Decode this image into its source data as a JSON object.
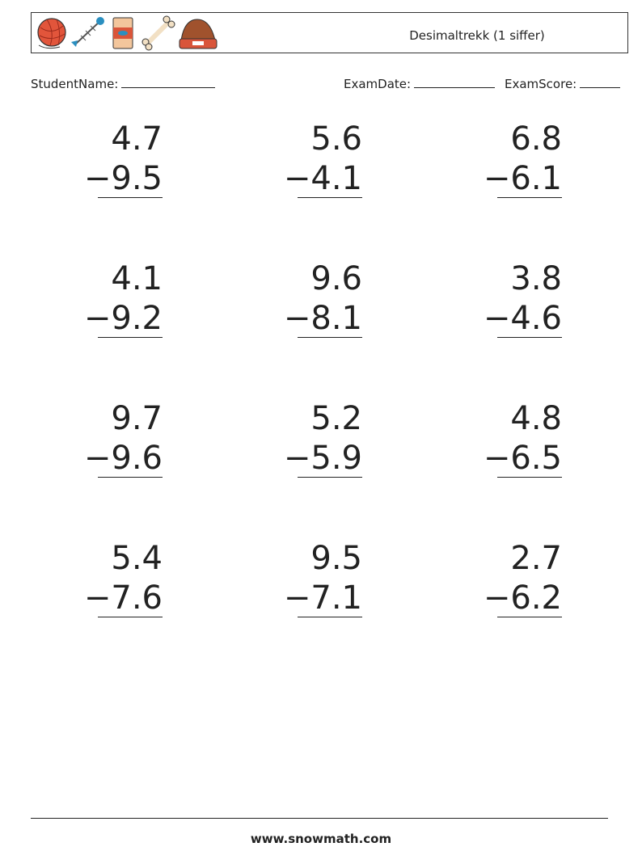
{
  "header": {
    "title": "Desimaltrekk (1 siffer)"
  },
  "fields": {
    "student_name": "StudentName:",
    "exam_date": "ExamDate:",
    "exam_score": "ExamScore:"
  },
  "problems": [
    {
      "top": "4.7",
      "bottom": "−9.5"
    },
    {
      "top": "5.6",
      "bottom": "−4.1"
    },
    {
      "top": "6.8",
      "bottom": "−6.1"
    },
    {
      "top": "4.1",
      "bottom": "−9.2"
    },
    {
      "top": "9.6",
      "bottom": "−8.1"
    },
    {
      "top": "3.8",
      "bottom": "−4.6"
    },
    {
      "top": "9.7",
      "bottom": "−9.6"
    },
    {
      "top": "5.2",
      "bottom": "−5.9"
    },
    {
      "top": "4.8",
      "bottom": "−6.5"
    },
    {
      "top": "5.4",
      "bottom": "−7.6"
    },
    {
      "top": "9.5",
      "bottom": "−7.1"
    },
    {
      "top": "2.7",
      "bottom": "−6.2"
    }
  ],
  "footer": {
    "text": "www.snowmath.com"
  }
}
